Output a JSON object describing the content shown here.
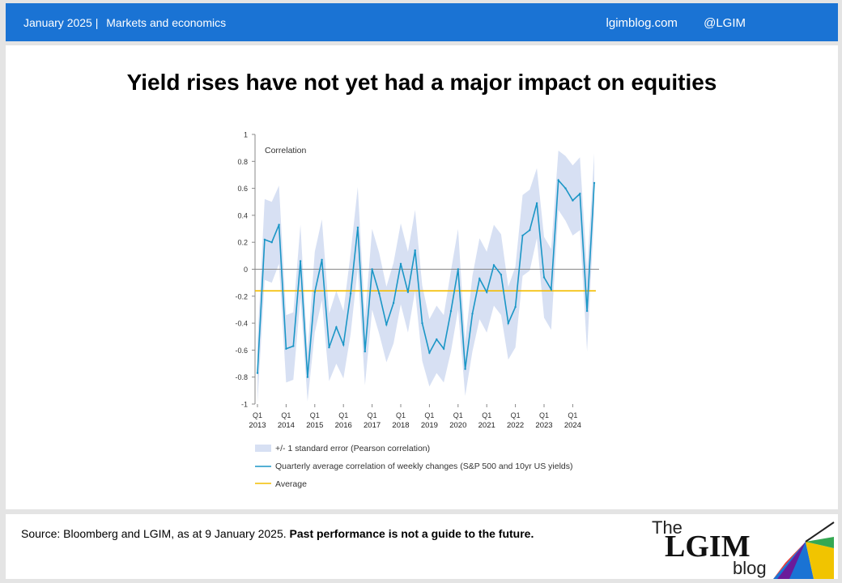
{
  "header": {
    "date": "January 2025",
    "separator": "|",
    "section": "Markets and economics",
    "site": "lgimblog.com",
    "handle": "@LGIM"
  },
  "title": "Yield rises have not yet had a major impact on equities",
  "footer": {
    "source": "Source: Bloomberg and LGIM,  as at 9 January 2025.",
    "disclaimer": "Past performance is not a guide to the future.",
    "logo_the": "The",
    "logo_lgim": "LGIM",
    "logo_blog": "blog"
  },
  "colors": {
    "header_bg": "#1a73d4",
    "line": "#1b96c6",
    "band": "#d7e0f3",
    "average": "#f4bd00"
  },
  "chart_data": {
    "type": "line",
    "ylabel": "Correlation",
    "ylim": [
      -1,
      1
    ],
    "yticks": [
      "1",
      "0.8",
      "0.6",
      "0.4",
      "0.2",
      "0",
      "-0.2",
      "-0.4",
      "-0.6",
      "-0.8",
      "-1"
    ],
    "xticks": [
      {
        "q": "Q1",
        "year": "2013"
      },
      {
        "q": "Q1",
        "year": "2014"
      },
      {
        "q": "Q1",
        "year": "2015"
      },
      {
        "q": "Q1",
        "year": "2016"
      },
      {
        "q": "Q1",
        "year": "2017"
      },
      {
        "q": "Q1",
        "year": "2018"
      },
      {
        "q": "Q1",
        "year": "2019"
      },
      {
        "q": "Q1",
        "year": "2020"
      },
      {
        "q": "Q1",
        "year": "2021"
      },
      {
        "q": "Q1",
        "year": "2022"
      },
      {
        "q": "Q1",
        "year": "2023"
      },
      {
        "q": "Q1",
        "year": "2024"
      }
    ],
    "quarter_start": "2013 Q1",
    "series": [
      {
        "name": "Quarterly average correlation of weekly changes (S&P 500 and 10yr US yields)",
        "values": [
          -0.77,
          0.22,
          0.2,
          0.33,
          -0.59,
          -0.57,
          0.06,
          -0.8,
          -0.17,
          0.07,
          -0.58,
          -0.43,
          -0.56,
          -0.18,
          0.31,
          -0.61,
          0.0,
          -0.18,
          -0.41,
          -0.25,
          0.04,
          -0.17,
          0.14,
          -0.4,
          -0.62,
          -0.52,
          -0.59,
          -0.31,
          0.0,
          -0.74,
          -0.33,
          -0.07,
          -0.17,
          0.03,
          -0.04,
          -0.4,
          -0.28,
          0.25,
          0.29,
          0.49,
          -0.06,
          -0.15,
          0.66,
          0.6,
          0.51,
          0.56,
          -0.31,
          0.64
        ]
      },
      {
        "name": "Average",
        "value": -0.16
      }
    ],
    "band": {
      "name": "+/- 1 standard error (Pearson correlation)",
      "halfwidth": [
        0.22,
        0.3,
        0.3,
        0.29,
        0.25,
        0.25,
        0.27,
        0.18,
        0.3,
        0.3,
        0.25,
        0.27,
        0.25,
        0.3,
        0.3,
        0.25,
        0.3,
        0.3,
        0.28,
        0.3,
        0.3,
        0.3,
        0.3,
        0.28,
        0.25,
        0.25,
        0.25,
        0.3,
        0.3,
        0.2,
        0.28,
        0.3,
        0.3,
        0.3,
        0.3,
        0.27,
        0.3,
        0.3,
        0.3,
        0.26,
        0.3,
        0.3,
        0.22,
        0.24,
        0.26,
        0.27,
        0.3,
        0.22
      ]
    },
    "legend_position": "bottom"
  }
}
